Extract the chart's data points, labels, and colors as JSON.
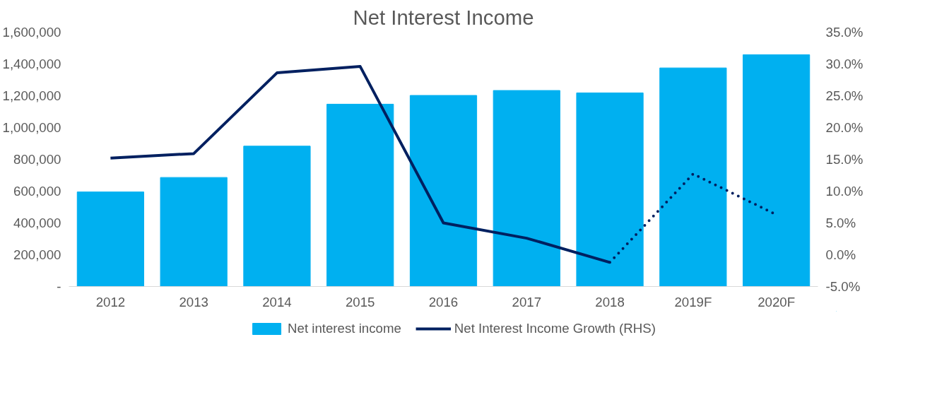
{
  "chart_data": {
    "type": "bar",
    "title": "Net Interest Income",
    "categories": [
      "2012",
      "2013",
      "2014",
      "2015",
      "2016",
      "2017",
      "2018",
      "2019F",
      "2020F"
    ],
    "series": [
      {
        "name": "Net interest income",
        "color": "#00b0f0",
        "values": [
          595000,
          686000,
          883000,
          1147000,
          1202000,
          1233000,
          1218000,
          1375000,
          1458000
        ]
      },
      {
        "name": "Net Interest Income Growth (RHS)",
        "type": "line",
        "axis": "y2",
        "color": "#002060",
        "line_style": "solid",
        "values": [
          15.2,
          15.9,
          28.6,
          29.6,
          5.0,
          2.6,
          -1.2,
          null,
          null
        ]
      },
      {
        "type": "line",
        "axis": "y2",
        "color": "#002060",
        "line_style": "dotted",
        "values": [
          null,
          null,
          null,
          null,
          null,
          null,
          -1.2,
          12.7,
          6.3
        ]
      }
    ],
    "ylim": [
      0,
      1600000
    ],
    "yticks": [
      {
        "value": 0,
        "label": "-"
      },
      {
        "value": 200000,
        "label": "200,000"
      },
      {
        "value": 400000,
        "label": "400,000"
      },
      {
        "value": 600000,
        "label": "600,000"
      },
      {
        "value": 800000,
        "label": "800,000"
      },
      {
        "value": 1000000,
        "label": "1,000,000"
      },
      {
        "value": 1200000,
        "label": "1,200,000"
      },
      {
        "value": 1400000,
        "label": "1,400,000"
      },
      {
        "value": 1600000,
        "label": "1,600,000"
      }
    ],
    "y2lim": [
      -5,
      35
    ],
    "y2ticks": [
      {
        "value": -5,
        "label": "-5.0%"
      },
      {
        "value": 0,
        "label": "0.0%"
      },
      {
        "value": 5,
        "label": "5.0%"
      },
      {
        "value": 10,
        "label": "10.0%"
      },
      {
        "value": 15,
        "label": "15.0%"
      },
      {
        "value": 20,
        "label": "20.0%"
      },
      {
        "value": 25,
        "label": "25.0%"
      },
      {
        "value": 30,
        "label": "30.0%"
      },
      {
        "value": 35,
        "label": "35.0%"
      }
    ],
    "grid": false,
    "legend": "bottom"
  }
}
